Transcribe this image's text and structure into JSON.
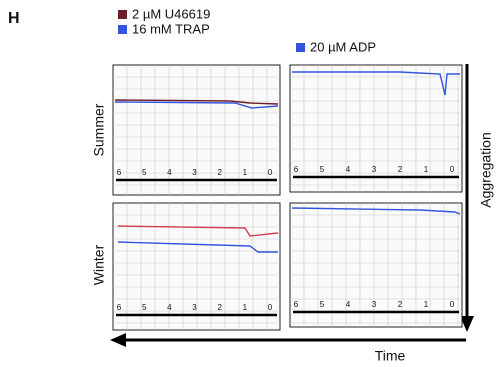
{
  "panel_label": "H",
  "legend": [
    {
      "label": "2 µM U46619",
      "color": "#6b1f2a"
    },
    {
      "label": "16 mM TRAP",
      "color": "#3355dd"
    },
    {
      "label": "20 µM ADP",
      "color": "#3355dd"
    }
  ],
  "rows": [
    "Summer",
    "Winter"
  ],
  "y_label": "Aggregation",
  "x_label": "Time",
  "panels": [
    {
      "ticks": [
        "6",
        "5",
        "4",
        "3",
        "2",
        "1",
        "0"
      ]
    },
    {
      "ticks": [
        "6",
        "5",
        "4",
        "3",
        "2",
        "1",
        "0"
      ]
    },
    {
      "ticks": [
        "6",
        "5",
        "4",
        "3",
        "2",
        "1",
        "0"
      ]
    },
    {
      "ticks": [
        "6",
        "5",
        "4",
        "3",
        "2",
        "1",
        "0"
      ]
    }
  ]
}
